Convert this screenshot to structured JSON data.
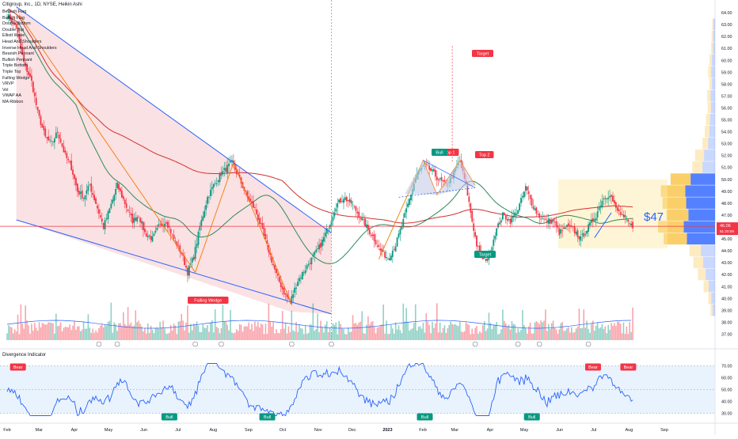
{
  "header": {
    "title": "Citigroup, Inc., 1D, NYSE, Heikin Ashi"
  },
  "indicators": [
    "Bearish Flag",
    "Bullish Flag",
    "Double Bottom",
    "Double Top",
    "Elliott Wave",
    "Head And Shoulders",
    "Inverse Head And Shoulders",
    "Bearish Pennant",
    "Bullish Pennant",
    "Triple Bottom",
    "Triple Top",
    "Falling Wedge",
    "VRVP",
    "Vol",
    "VWAP AA",
    "MA Ribbon"
  ],
  "oscillator": {
    "title": "Divergence Indicator",
    "ticks": [
      "70.00",
      "60.00",
      "50.00",
      "40.00",
      "30.00"
    ],
    "band": [
      30,
      70
    ],
    "labels": [
      {
        "text": "Bear",
        "day": 5
      },
      {
        "text": "Bull",
        "day": 104
      },
      {
        "text": "Bull",
        "day": 168
      },
      {
        "text": "Bull",
        "day": 271
      },
      {
        "text": "Bull",
        "day": 341
      },
      {
        "text": "Bear",
        "day": 381
      },
      {
        "text": "Bear",
        "day": 404
      }
    ]
  },
  "chart_data": {
    "type": "candlestick",
    "title": "Citigroup, Inc., 1D, NYSE, Heikin Ashi",
    "price_axis": [
      "64.00",
      "63.00",
      "62.00",
      "61.00",
      "60.00",
      "59.00",
      "58.00",
      "57.00",
      "56.00",
      "55.00",
      "54.00",
      "53.00",
      "52.00",
      "51.00",
      "50.00",
      "49.00",
      "48.00",
      "47.00",
      "46.00",
      "45.00",
      "44.00",
      "43.00",
      "42.00",
      "41.00",
      "40.00",
      "39.00",
      "38.00",
      "37.00"
    ],
    "ylim": [
      36.5,
      64.8
    ],
    "x_months": [
      "Feb",
      "Mar",
      "Apr",
      "May",
      "Jun",
      "Jul",
      "Aug",
      "Sep",
      "Oct",
      "Nov",
      "Dec",
      "2023",
      "Feb",
      "Mar",
      "Apr",
      "May",
      "Jun",
      "Jul",
      "Aug",
      "Sep"
    ],
    "last_price": "46.06",
    "last_price_sub": "81:20:09",
    "price_annotation": "$47",
    "close_path": [
      [
        0,
        63.8
      ],
      [
        6,
        62.8
      ],
      [
        11,
        59.8
      ],
      [
        16,
        58.2
      ],
      [
        20,
        55.6
      ],
      [
        25,
        53.5
      ],
      [
        29,
        53.0
      ],
      [
        33,
        54.0
      ],
      [
        38,
        52.0
      ],
      [
        42,
        51.0
      ],
      [
        46,
        49.0
      ],
      [
        50,
        48.5
      ],
      [
        54,
        49.5
      ],
      [
        58,
        48.0
      ],
      [
        63,
        46.0
      ],
      [
        67,
        47.5
      ],
      [
        72,
        49.5
      ],
      [
        77,
        48.0
      ],
      [
        82,
        46.5
      ],
      [
        86,
        47.0
      ],
      [
        90,
        45.5
      ],
      [
        95,
        45.0
      ],
      [
        99,
        46.0
      ],
      [
        104,
        46.5
      ],
      [
        109,
        45.0
      ],
      [
        114,
        43.8
      ],
      [
        118,
        42.2
      ],
      [
        122,
        43.5
      ],
      [
        126,
        46.0
      ],
      [
        131,
        48.5
      ],
      [
        135,
        49.5
      ],
      [
        140,
        50.5
      ],
      [
        144,
        51.0
      ],
      [
        147,
        51.4
      ],
      [
        152,
        50.0
      ],
      [
        157,
        48.5
      ],
      [
        162,
        47.5
      ],
      [
        166,
        46.0
      ],
      [
        171,
        44.0
      ],
      [
        176,
        42.0
      ],
      [
        181,
        40.5
      ],
      [
        185,
        39.7
      ],
      [
        190,
        41.5
      ],
      [
        195,
        42.5
      ],
      [
        200,
        43.5
      ],
      [
        205,
        44.5
      ],
      [
        210,
        46.0
      ],
      [
        215,
        47.8
      ],
      [
        220,
        48.5
      ],
      [
        225,
        48.0
      ],
      [
        230,
        47.0
      ],
      [
        235,
        46.0
      ],
      [
        240,
        45.0
      ],
      [
        244,
        44.0
      ],
      [
        249,
        43.4
      ],
      [
        254,
        44.5
      ],
      [
        259,
        46.5
      ],
      [
        264,
        48.8
      ],
      [
        268,
        50.5
      ],
      [
        273,
        51.2
      ],
      [
        278,
        50.6
      ],
      [
        282,
        50.0
      ],
      [
        287,
        49.5
      ],
      [
        292,
        50.5
      ],
      [
        296,
        51.5
      ],
      [
        300,
        49.5
      ],
      [
        304,
        46.5
      ],
      [
        307,
        44.5
      ],
      [
        311,
        43.2
      ],
      [
        315,
        43.5
      ],
      [
        319,
        45.5
      ],
      [
        324,
        47.0
      ],
      [
        329,
        46.5
      ],
      [
        334,
        47.5
      ],
      [
        339,
        49.3
      ],
      [
        343,
        48.0
      ],
      [
        347,
        47.0
      ],
      [
        352,
        46.5
      ],
      [
        357,
        46.5
      ],
      [
        361,
        45.5
      ],
      [
        366,
        46.0
      ],
      [
        370,
        45.8
      ],
      [
        375,
        45.0
      ],
      [
        380,
        46.0
      ],
      [
        385,
        47.0
      ],
      [
        389,
        48.3
      ],
      [
        394,
        48.8
      ],
      [
        398,
        47.5
      ],
      [
        403,
        46.8
      ],
      [
        407,
        46.2
      ],
      [
        409,
        46.06
      ]
    ],
    "volume_ylim": [
      0,
      48
    ],
    "overlays": {
      "falling_wedge_label": "Falling Wedge",
      "top1_label": "Top 1",
      "top2_label": "Top 2",
      "target_labels": [
        "Target",
        "Target"
      ],
      "bull_label": "Bull",
      "bear_label": "Bear"
    },
    "volume_profile_bins": [
      {
        "price": 63.0,
        "value": 0.05
      },
      {
        "price": 62.0,
        "value": 0.06
      },
      {
        "price": 61.0,
        "value": 0.07
      },
      {
        "price": 60.0,
        "value": 0.1
      },
      {
        "price": 59.0,
        "value": 0.12
      },
      {
        "price": 58.0,
        "value": 0.1
      },
      {
        "price": 57.0,
        "value": 0.14
      },
      {
        "price": 56.0,
        "value": 0.13
      },
      {
        "price": 55.0,
        "value": 0.16
      },
      {
        "price": 54.0,
        "value": 0.18
      },
      {
        "price": 53.0,
        "value": 0.22
      },
      {
        "price": 52.0,
        "value": 0.35
      },
      {
        "price": 51.0,
        "value": 0.4
      },
      {
        "price": 50.0,
        "value": 0.78
      },
      {
        "price": 49.0,
        "value": 0.95
      },
      {
        "price": 48.0,
        "value": 0.92
      },
      {
        "price": 47.0,
        "value": 0.85
      },
      {
        "price": 46.0,
        "value": 1.0
      },
      {
        "price": 45.0,
        "value": 0.9
      },
      {
        "price": 44.0,
        "value": 0.45
      },
      {
        "price": 43.0,
        "value": 0.38
      },
      {
        "price": 42.0,
        "value": 0.3
      },
      {
        "price": 41.0,
        "value": 0.2
      },
      {
        "price": 40.0,
        "value": 0.12
      },
      {
        "price": 39.0,
        "value": 0.08
      }
    ]
  },
  "colors": {
    "up": "#089981",
    "down": "#f23645",
    "wedge_fill": "#f8d7da",
    "trend_blue": "#2962ff",
    "ma_green": "#2e8b57",
    "ma_red": "#d32f2f",
    "vp_up": "#2962ff",
    "vp_down": "#f9c74f",
    "osc_line": "#2962ff",
    "osc_band": "#e3f0fc"
  }
}
